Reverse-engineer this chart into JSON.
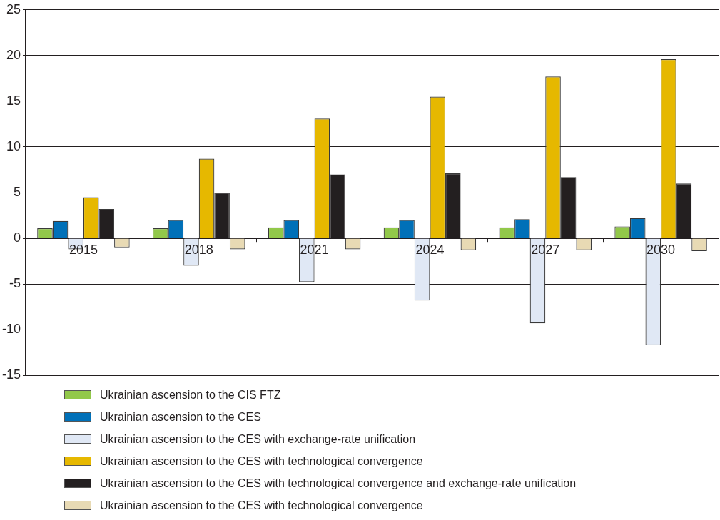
{
  "chart_data": {
    "type": "bar",
    "categories": [
      "2015",
      "2018",
      "2021",
      "2024",
      "2027",
      "2030"
    ],
    "series": [
      {
        "name": "Ukrainian ascension to the CIS FTZ",
        "color": "#92c84a",
        "values": [
          1.1,
          1.1,
          1.2,
          1.2,
          1.2,
          1.3
        ]
      },
      {
        "name": "Ukrainian ascension to the CES",
        "color": "#0070b8",
        "values": [
          1.9,
          2.0,
          2.0,
          2.0,
          2.1,
          2.2
        ]
      },
      {
        "name": "Ukrainian ascension to the CES with exchange-rate unification",
        "color": "#e0e8f5",
        "values": [
          -1.2,
          -3.0,
          -4.8,
          -6.8,
          -9.3,
          -11.7
        ]
      },
      {
        "name": "Ukrainian ascension to the CES with technological convergence",
        "color": "#e6b800",
        "values": [
          4.5,
          8.7,
          13.1,
          15.5,
          17.7,
          19.6
        ]
      },
      {
        "name": "Ukrainian ascension to the CES with technological convergence and exchange-rate unification",
        "color": "#231f20",
        "values": [
          3.2,
          5.0,
          7.0,
          7.1,
          6.7,
          6.0
        ]
      },
      {
        "name": "Ukrainian ascension to the CES with technological convergence",
        "color": "#e8dab4",
        "values": [
          -1.0,
          -1.2,
          -1.2,
          -1.3,
          -1.3,
          -1.4
        ]
      }
    ],
    "ylim": [
      -15,
      25
    ],
    "yticks": [
      -15,
      -10,
      -5,
      0,
      5,
      10,
      15,
      20,
      25
    ],
    "grid": "y",
    "legend": "bottom"
  }
}
